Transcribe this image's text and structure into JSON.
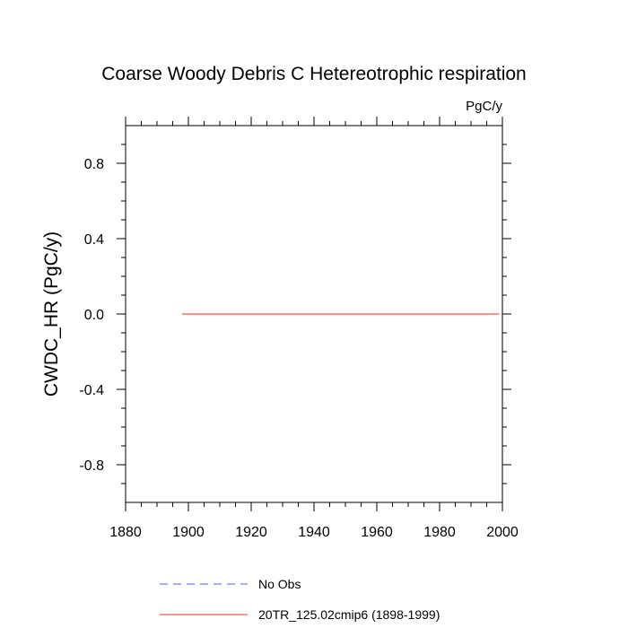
{
  "chart_data": {
    "type": "line",
    "title": "Coarse Woody Debris C Hetereotrophic respiration",
    "units": "PgC/y",
    "ylabel": "CWDC_HR  (PgC/y)",
    "xlabel": "",
    "xlim": [
      1880,
      2000
    ],
    "ylim": [
      -1.0,
      1.0
    ],
    "xticks": [
      1880,
      1900,
      1920,
      1940,
      1960,
      1980,
      2000
    ],
    "yticks": [
      -0.8,
      -0.4,
      0.0,
      0.4,
      0.8
    ],
    "ytick_labels": [
      "-0.8",
      "-0.4",
      "0.0",
      "0.4",
      "0.8"
    ],
    "grid": false,
    "legend_position": "bottom",
    "series": [
      {
        "name": "20TR_125.02cmip6 (1898-1999)",
        "color": "#e8301f",
        "style": "solid",
        "x": [
          1898,
          1999
        ],
        "y": [
          0.0,
          0.0
        ]
      },
      {
        "name": "No Obs",
        "color": "#5a5aff",
        "style": "dashed",
        "x": [],
        "y": []
      }
    ]
  }
}
